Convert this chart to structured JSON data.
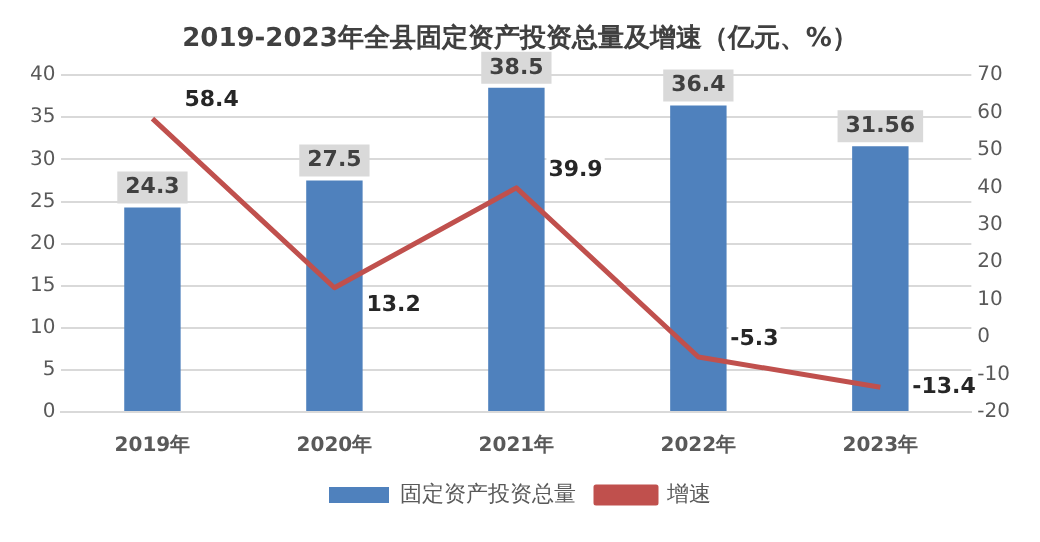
{
  "chart_data": {
    "type": "bar",
    "title": "2019-2023年全县固定资产投资总量及增速（亿元、%）",
    "categories": [
      "2019年",
      "2020年",
      "2021年",
      "2022年",
      "2023年"
    ],
    "series": [
      {
        "name": "固定资产投资总量",
        "color": "#4f81bd",
        "values": [
          24.3,
          27.5,
          38.5,
          36.4,
          31.56
        ]
      },
      {
        "name": "增速",
        "type": "line",
        "axis": "y2",
        "color": "#c0504d",
        "values": [
          58.4,
          13.2,
          39.9,
          -5.3,
          -13.4
        ]
      }
    ],
    "ylim": [
      0,
      40
    ],
    "yticks": [
      0,
      5,
      10,
      15,
      20,
      25,
      30,
      35,
      40
    ],
    "y2lim": [
      -20,
      70
    ],
    "y2ticks": [
      -20,
      -10,
      0,
      10,
      20,
      30,
      40,
      50,
      60,
      70
    ],
    "grid": "y",
    "legend": "bottom",
    "marker": "none",
    "line_style": "solid",
    "data_labels": true
  }
}
